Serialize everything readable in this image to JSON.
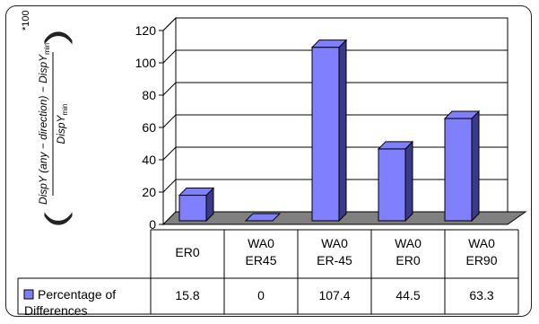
{
  "chart_data": {
    "type": "bar",
    "title": "",
    "xlabel": "",
    "ylabel_parts": {
      "open_paren": "(",
      "numerator": "DispY (any − direction) − DispY",
      "num_sub": "min",
      "close_paren": ")",
      "denominator": "DispY",
      "den_sub": "min",
      "multiplier": "*100"
    },
    "ylim": [
      0,
      120
    ],
    "yticks": [
      0,
      20,
      40,
      60,
      80,
      100,
      120
    ],
    "grid": true,
    "categories": [
      [
        "ER0"
      ],
      [
        "WA0",
        "ER45"
      ],
      [
        "WA0",
        "ER-45"
      ],
      [
        "WA0",
        "ER0"
      ],
      [
        "WA0",
        "ER90"
      ]
    ],
    "series": [
      {
        "name_lines": [
          "Percentage of",
          "Differences"
        ],
        "values": [
          15.8,
          0,
          107.4,
          44.5,
          63.3
        ],
        "value_labels": [
          "15.8",
          "0",
          "107.4",
          "44.5",
          "63.3"
        ],
        "color": "#8080ff"
      }
    ],
    "floor_color": "#808080",
    "table_below": true
  }
}
